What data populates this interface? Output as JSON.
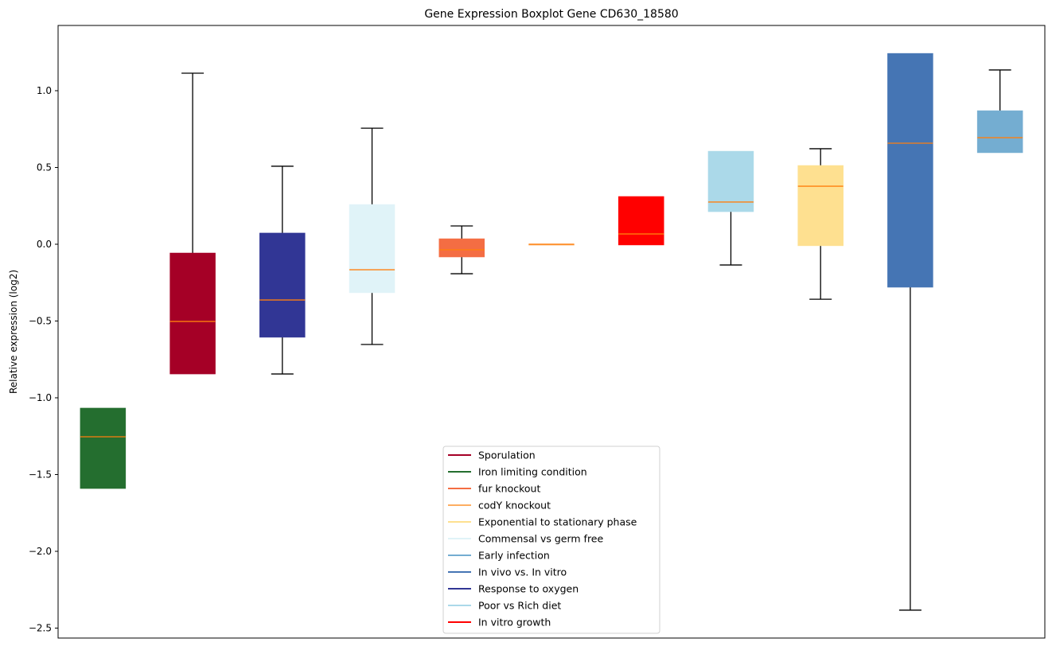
{
  "chart_data": {
    "type": "boxplot",
    "title": "Gene Expression Boxplot Gene CD630_18580",
    "xlabel": "",
    "ylabel": "Relative expression (log2)",
    "ylim": [
      -2.58,
      1.42
    ],
    "yticks": [
      1.0,
      0.5,
      0.0,
      -0.5,
      -1.0,
      -1.5,
      -2.0,
      -2.5
    ],
    "ytick_labels": [
      "1.0",
      "0.5",
      "0.0",
      "−0.5",
      "−1.0",
      "−1.5",
      "−2.0",
      "−2.5"
    ],
    "grid": false,
    "median_color": "#ff7f0e",
    "boxes": [
      {
        "name": "Iron limiting condition",
        "color": "#246e2f",
        "whislo": -1.591,
        "q1": -1.591,
        "med": -1.254,
        "q3": -1.067,
        "whishi": -1.067
      },
      {
        "name": "Sporulation",
        "color": "#a50026",
        "whislo": -0.845,
        "q1": -0.845,
        "med": -0.503,
        "q3": -0.057,
        "whishi": 1.114
      },
      {
        "name": "Response to oxygen",
        "color": "#313695",
        "whislo": -0.845,
        "q1": -0.606,
        "med": -0.363,
        "q3": 0.073,
        "whishi": 0.508
      },
      {
        "name": "Commensal vs germ free",
        "color": "#e0f3f8",
        "whislo": -0.653,
        "q1": -0.316,
        "med": -0.166,
        "q3": 0.259,
        "whishi": 0.756
      },
      {
        "name": "fur knockout",
        "color": "#f46d43",
        "whislo": -0.192,
        "q1": -0.083,
        "med": -0.036,
        "q3": 0.036,
        "whishi": 0.119
      },
      {
        "name": "codY knockout",
        "color": "#fdae61",
        "whislo": 0.0,
        "q1": -0.002,
        "med": 0.0,
        "q3": 0.002,
        "whishi": 0.0
      },
      {
        "name": "In vitro growth",
        "color": "#ff0000",
        "whislo": -0.005,
        "q1": -0.005,
        "med": 0.067,
        "q3": 0.311,
        "whishi": 0.311
      },
      {
        "name": "Poor vs Rich diet",
        "color": "#abd9e9",
        "whislo": -0.135,
        "q1": 0.212,
        "med": 0.275,
        "q3": 0.606,
        "whishi": 0.606
      },
      {
        "name": "Exponential to stationary phase",
        "color": "#fee090",
        "whislo": -0.358,
        "q1": -0.01,
        "med": 0.378,
        "q3": 0.513,
        "whishi": 0.622
      },
      {
        "name": "In vivo vs. In vitro",
        "color": "#4575b4",
        "whislo": -2.383,
        "q1": -0.28,
        "med": 0.658,
        "q3": 1.243,
        "whishi": 1.243
      },
      {
        "name": "Early infection",
        "color": "#74add1",
        "whislo": 0.596,
        "q1": 0.596,
        "med": 0.694,
        "q3": 0.87,
        "whishi": 1.135
      }
    ],
    "legend": {
      "placement": "lower-center",
      "entries": [
        {
          "label": "Sporulation",
          "color": "#a50026"
        },
        {
          "label": "Iron limiting condition",
          "color": "#246e2f"
        },
        {
          "label": "fur knockout",
          "color": "#f46d43"
        },
        {
          "label": "codY knockout",
          "color": "#fdae61"
        },
        {
          "label": "Exponential to stationary phase",
          "color": "#fee090"
        },
        {
          "label": "Commensal vs germ free",
          "color": "#e0f3f8"
        },
        {
          "label": "Early infection",
          "color": "#74add1"
        },
        {
          "label": "In vivo vs. In vitro",
          "color": "#4575b4"
        },
        {
          "label": "Response to oxygen",
          "color": "#313695"
        },
        {
          "label": "Poor vs Rich diet",
          "color": "#abd9e9"
        },
        {
          "label": "In vitro growth",
          "color": "#ff0000"
        }
      ]
    }
  }
}
